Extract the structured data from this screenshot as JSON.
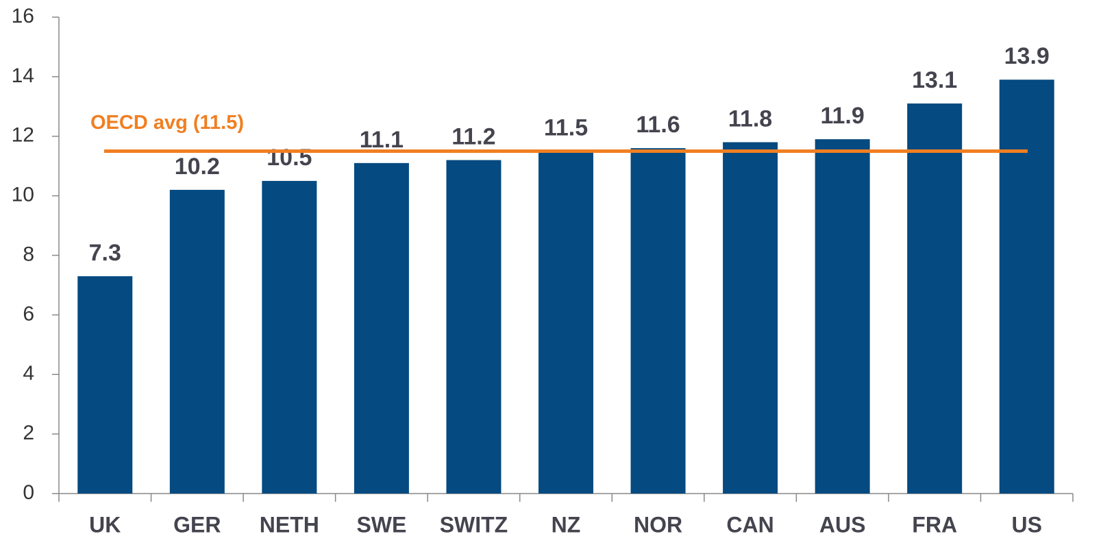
{
  "chart_data": {
    "type": "bar",
    "categories": [
      "UK",
      "GER",
      "NETH",
      "SWE",
      "SWITZ",
      "NZ",
      "NOR",
      "CAN",
      "AUS",
      "FRA",
      "US"
    ],
    "values": [
      7.3,
      10.2,
      10.5,
      11.1,
      11.2,
      11.5,
      11.6,
      11.8,
      11.9,
      13.1,
      13.9
    ],
    "color": "#054a80",
    "ylim": [
      0,
      16
    ],
    "yticks": [
      0,
      2,
      4,
      6,
      8,
      10,
      12,
      14,
      16
    ],
    "grid": false,
    "reference_line": {
      "value": 11.5,
      "label": "OECD avg (11.5)",
      "color": "#f07f22"
    }
  }
}
